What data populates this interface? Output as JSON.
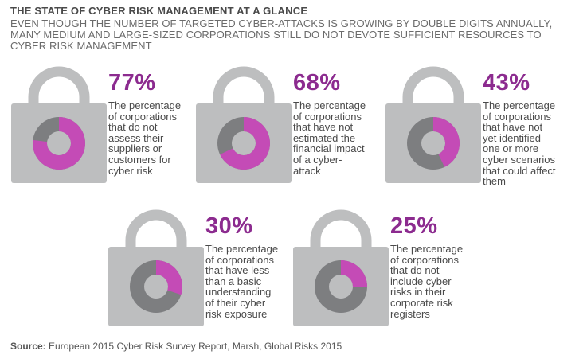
{
  "title": "THE STATE OF CYBER RISK MANAGEMENT AT A GLANCE",
  "subtitle": "EVEN THOUGH THE NUMBER OF TARGETED CYBER-ATTACKS IS GROWING BY DOUBLE DIGITS ANNUALLY, MANY MEDIUM AND LARGE-SIZED CORPORATIONS STILL DO NOT DEVOTE SUFFICIENT RESOURCES TO CYBER RISK MANAGEMENT",
  "source": {
    "label": "Source:",
    "text": "European 2015 Cyber Risk Survey Report, Marsh, Global Risks 2015"
  },
  "colors": {
    "accent": "#c44bb6",
    "percent_text": "#8c2b8f",
    "lock_body": "#bdbebf",
    "ring_gray": "#7d7e80"
  },
  "chart_data": {
    "type": "pie",
    "items": [
      {
        "value": 77,
        "label": "77%",
        "text": "The percentage of corporations that do not assess their suppliers or customers for cyber risk"
      },
      {
        "value": 68,
        "label": "68%",
        "text": "The percentage of corporations that have not estimated the financial impact of a cyber-attack"
      },
      {
        "value": 43,
        "label": "43%",
        "text": "The percentage of corporations that have not yet identified one or more cyber scenarios that could affect them"
      },
      {
        "value": 30,
        "label": "30%",
        "text": "The percentage of corporations that have less than a basic understanding of their cyber risk exposure"
      },
      {
        "value": 25,
        "label": "25%",
        "text": "The percentage of corporations that do not include cyber risks in their corporate risk registers"
      }
    ]
  }
}
